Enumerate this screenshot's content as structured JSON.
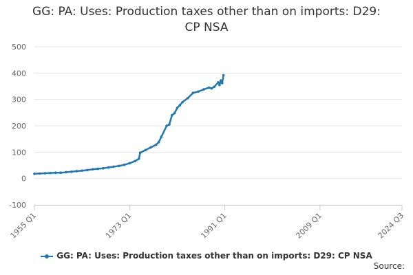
{
  "chart_data": {
    "type": "line",
    "title_lines": [
      "GG: PA: Uses: Production taxes other than on imports: D29:",
      "CP NSA"
    ],
    "xlabel": "",
    "ylabel": "",
    "ylim": [
      -100,
      500
    ],
    "yticks": [
      -100,
      0,
      100,
      200,
      300,
      400,
      500
    ],
    "xrange": [
      1955.0,
      2024.5
    ],
    "xticks": [
      {
        "value": 1955.0,
        "label": "1955 Q1"
      },
      {
        "value": 1973.0,
        "label": "1973 Q1"
      },
      {
        "value": 1991.0,
        "label": "1991 Q1"
      },
      {
        "value": 2009.0,
        "label": "2009 Q1"
      },
      {
        "value": 2024.5,
        "label": "2024 Q3"
      }
    ],
    "grid": true,
    "legend_position": "bottom",
    "series": [
      {
        "name": "GG: PA: Uses: Production taxes other than on imports: D29: CP NSA",
        "color": "#1f77b4",
        "x": [
          1955.0,
          1956.0,
          1957.0,
          1958.0,
          1959.0,
          1960.0,
          1961.0,
          1962.0,
          1963.0,
          1964.0,
          1965.0,
          1966.0,
          1967.0,
          1968.0,
          1969.0,
          1970.0,
          1971.0,
          1972.0,
          1973.0,
          1974.0,
          1974.75,
          1975.0,
          1976.0,
          1977.0,
          1978.0,
          1978.5,
          1979.0,
          1980.0,
          1980.5,
          1981.0,
          1981.5,
          1982.0,
          1982.5,
          1983.0,
          1984.0,
          1985.0,
          1986.0,
          1987.0,
          1988.0,
          1988.5,
          1989.0,
          1989.75,
          1990.0,
          1990.25,
          1990.5,
          1990.75
        ],
        "values": [
          18,
          19,
          20,
          21,
          22,
          22,
          24,
          26,
          28,
          30,
          32,
          35,
          37,
          39,
          42,
          45,
          48,
          52,
          58,
          66,
          75,
          98,
          108,
          118,
          128,
          138,
          158,
          200,
          205,
          240,
          248,
          268,
          278,
          290,
          305,
          325,
          330,
          338,
          345,
          342,
          348,
          365,
          355,
          372,
          362,
          392
        ]
      }
    ]
  },
  "source_label": "Source:"
}
